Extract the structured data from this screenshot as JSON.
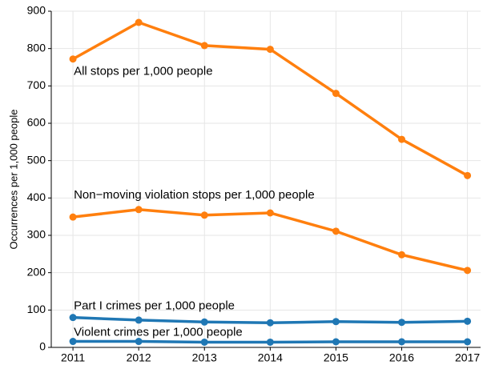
{
  "chart_data": {
    "type": "line",
    "y_label": "Occurrences per 1,000 people",
    "x": [
      2011,
      2012,
      2013,
      2014,
      2015,
      2016,
      2017
    ],
    "xlim": [
      2010.67,
      2017.2
    ],
    "xticks": [
      2011,
      2012,
      2013,
      2014,
      2015,
      2016,
      2017
    ],
    "ylim": [
      0,
      900
    ],
    "yticks": [
      0,
      100,
      200,
      300,
      400,
      500,
      600,
      700,
      800,
      900
    ],
    "grid": true,
    "series": [
      {
        "name": "All stops per 1,000 people",
        "color": "#ff7f0e",
        "values": [
          772,
          870,
          808,
          798,
          680,
          557,
          460
        ]
      },
      {
        "name": "Non−moving violation stops per 1,000 people",
        "color": "#ff7f0e",
        "values": [
          349,
          369,
          354,
          360,
          311,
          248,
          206
        ]
      },
      {
        "name": "Part I crimes per 1,000 people",
        "color": "#1f77b4",
        "values": [
          80,
          73,
          68,
          66,
          69,
          67,
          70
        ]
      },
      {
        "name": "Violent crimes per 1,000 people",
        "color": "#1f77b4",
        "values": [
          16,
          16,
          14,
          14,
          15,
          15,
          15
        ]
      }
    ]
  }
}
